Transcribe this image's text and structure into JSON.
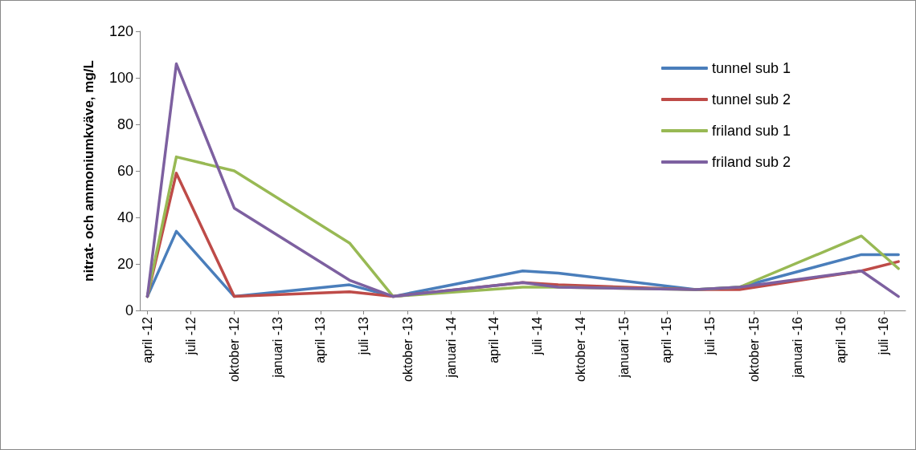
{
  "chart_data": {
    "type": "line",
    "ylabel": "nitrat- och ammoniumkväve, mg/L",
    "x": [
      "2012-04",
      "2012-06",
      "2012-10",
      "2013-06",
      "2013-09",
      "2014-06",
      "2014-08-15",
      "2015-06",
      "2015-09",
      "2016-05-15",
      "2016-08"
    ],
    "series": [
      {
        "name": "tunnel sub 1",
        "color": "#4a7ebb",
        "values": [
          6,
          34,
          6,
          11,
          6,
          17,
          16,
          9,
          10,
          24,
          24
        ]
      },
      {
        "name": "tunnel sub 2",
        "color": "#be4b48",
        "values": [
          6,
          59,
          6,
          8,
          6,
          12,
          11,
          9,
          9,
          17,
          21
        ]
      },
      {
        "name": "friland sub 1",
        "color": "#98b954",
        "values": [
          6,
          66,
          60,
          29,
          6,
          10,
          10,
          9,
          10,
          32,
          18
        ]
      },
      {
        "name": "friland sub 2",
        "color": "#7d60a0",
        "values": [
          6,
          106,
          44,
          13,
          6,
          12,
          10,
          9,
          10,
          17,
          6
        ]
      }
    ],
    "xlim": [
      "2012-03-16",
      "2016-08-16"
    ],
    "xticks": [
      {
        "value": "2012-04",
        "label": "april -12"
      },
      {
        "value": "2012-07",
        "label": "juli -12"
      },
      {
        "value": "2012-10",
        "label": "oktober -12"
      },
      {
        "value": "2013-01",
        "label": "januari -13"
      },
      {
        "value": "2013-04",
        "label": "april -13"
      },
      {
        "value": "2013-07",
        "label": "juli -13"
      },
      {
        "value": "2013-10",
        "label": "oktober -13"
      },
      {
        "value": "2014-01",
        "label": "januari -14"
      },
      {
        "value": "2014-04",
        "label": "april -14"
      },
      {
        "value": "2014-07",
        "label": "juli -14"
      },
      {
        "value": "2014-10",
        "label": "oktober -14"
      },
      {
        "value": "2015-01",
        "label": "januari -15"
      },
      {
        "value": "2015-04",
        "label": "april -15"
      },
      {
        "value": "2015-07",
        "label": "juli -15"
      },
      {
        "value": "2015-10",
        "label": "oktober -15"
      },
      {
        "value": "2016-01",
        "label": "januari -16"
      },
      {
        "value": "2016-04",
        "label": "april -16"
      },
      {
        "value": "2016-07",
        "label": "juli -16"
      }
    ],
    "ylim": [
      0,
      120
    ],
    "yticks": [
      0,
      20,
      40,
      60,
      80,
      100,
      120
    ],
    "grid": false,
    "legend": "top right",
    "marker": "none",
    "line_style": "solid"
  }
}
